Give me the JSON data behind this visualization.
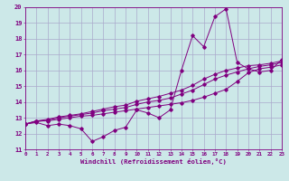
{
  "xlabel": "Windchill (Refroidissement éolien,°C)",
  "bg_color": "#cce8e8",
  "line_color": "#800080",
  "grid_color": "#aaaacc",
  "x_data": [
    0,
    1,
    2,
    3,
    4,
    5,
    6,
    7,
    8,
    9,
    10,
    11,
    12,
    13,
    14,
    15,
    16,
    17,
    18,
    19,
    20,
    21,
    22,
    23
  ],
  "line1": [
    12.6,
    12.7,
    12.5,
    12.6,
    12.5,
    12.3,
    11.5,
    11.8,
    12.2,
    12.4,
    13.5,
    13.3,
    13.0,
    13.5,
    16.0,
    18.2,
    17.5,
    19.4,
    19.9,
    16.5,
    16.1,
    15.9,
    16.0,
    16.7
  ],
  "line2": [
    12.6,
    12.8,
    12.8,
    12.9,
    13.0,
    13.1,
    13.15,
    13.25,
    13.35,
    13.45,
    13.55,
    13.65,
    13.75,
    13.85,
    13.95,
    14.1,
    14.3,
    14.55,
    14.8,
    15.3,
    15.85,
    16.1,
    16.2,
    16.35
  ],
  "line3": [
    12.6,
    12.75,
    12.85,
    13.0,
    13.1,
    13.2,
    13.3,
    13.45,
    13.55,
    13.65,
    13.85,
    14.0,
    14.1,
    14.25,
    14.5,
    14.75,
    15.1,
    15.45,
    15.7,
    15.9,
    16.1,
    16.25,
    16.35,
    16.5
  ],
  "line4": [
    12.6,
    12.8,
    12.9,
    13.05,
    13.15,
    13.25,
    13.4,
    13.55,
    13.7,
    13.8,
    14.05,
    14.2,
    14.35,
    14.55,
    14.75,
    15.05,
    15.45,
    15.75,
    16.0,
    16.15,
    16.3,
    16.35,
    16.45,
    16.6
  ],
  "ylim": [
    11,
    20
  ],
  "xlim": [
    0,
    23
  ]
}
